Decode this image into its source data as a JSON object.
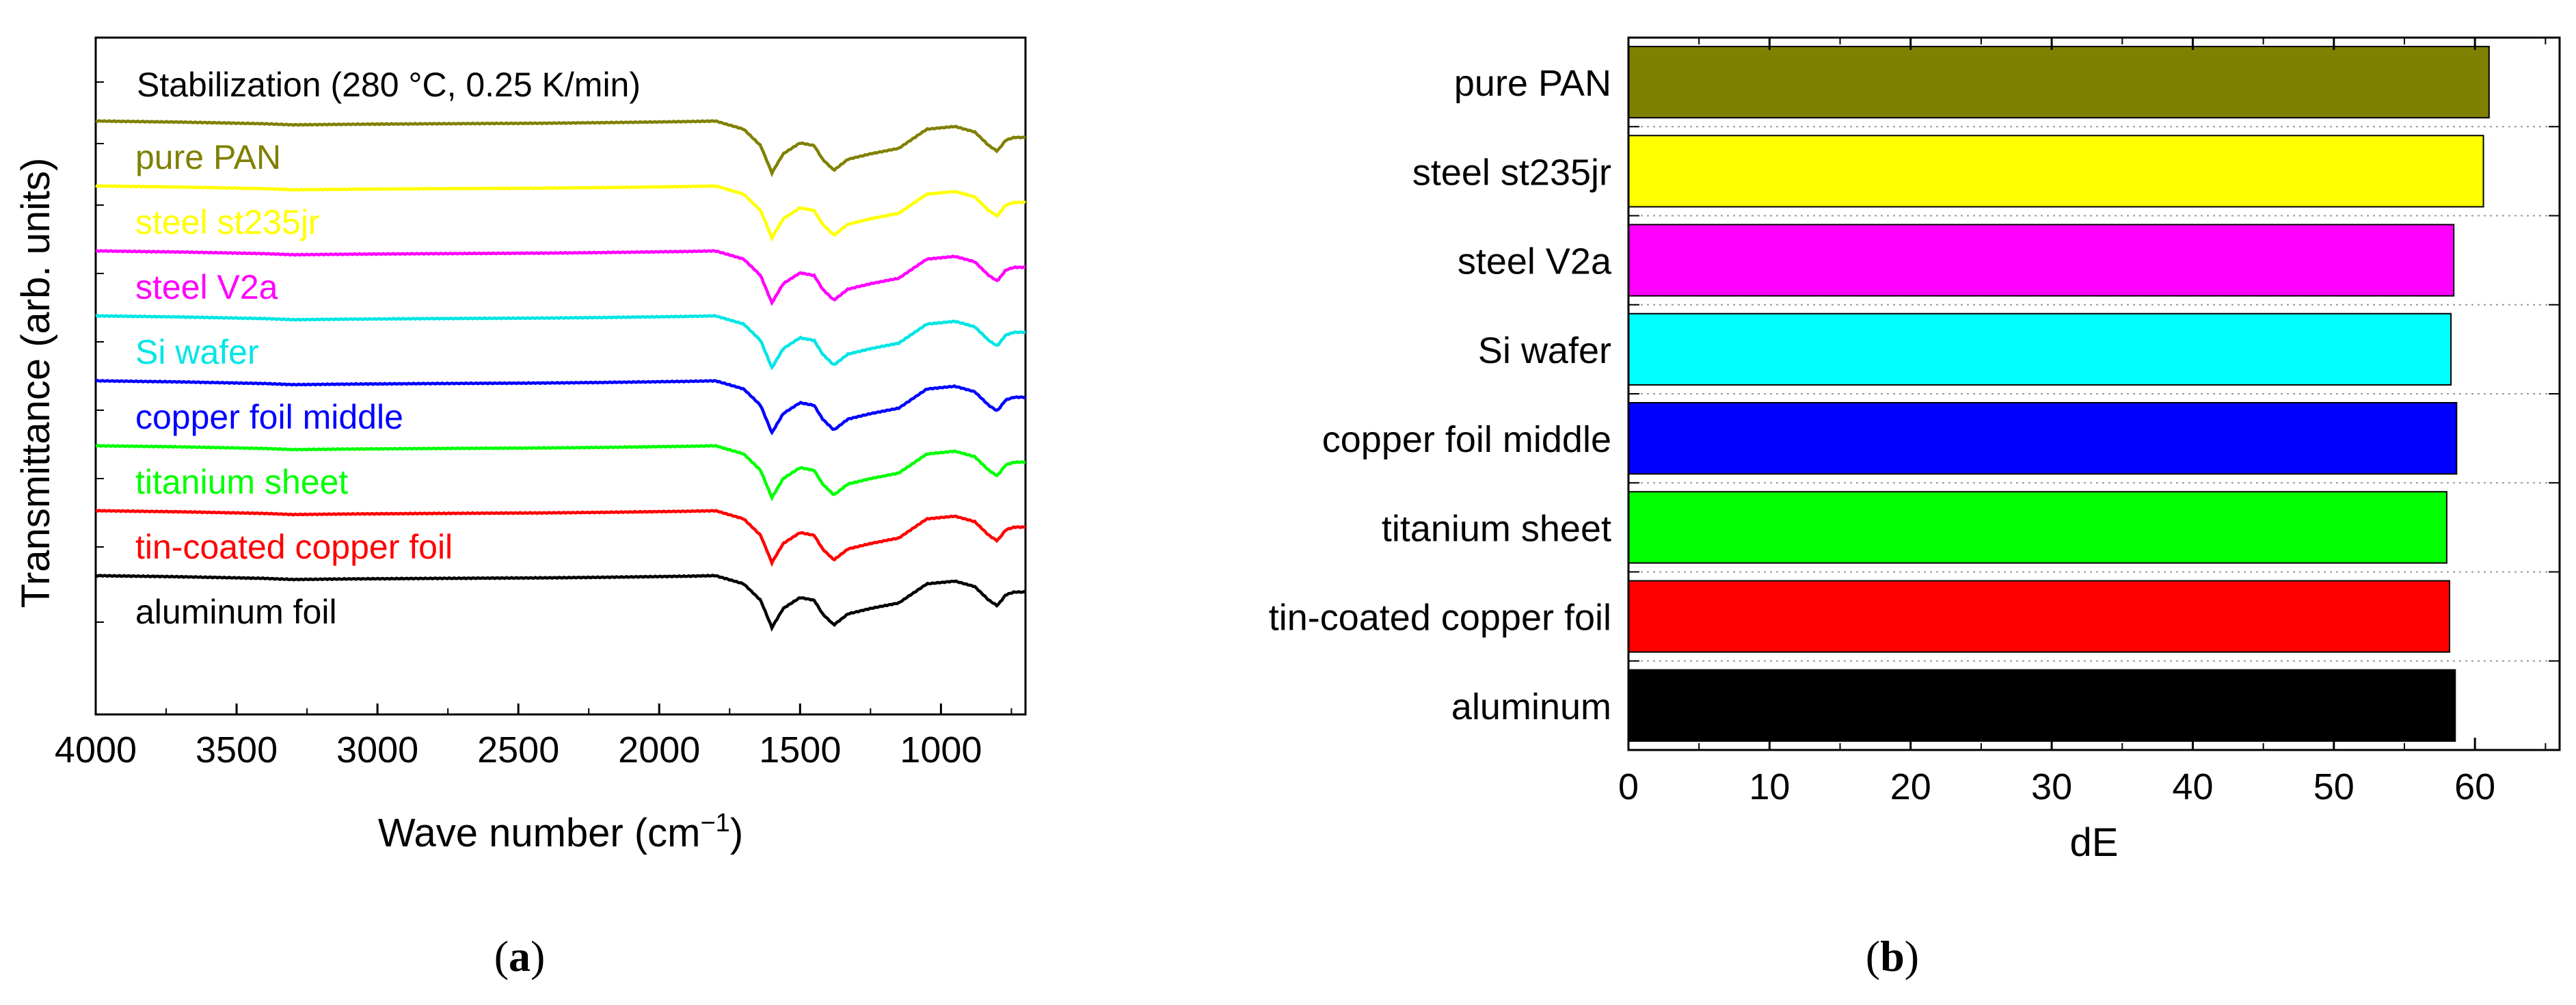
{
  "chart_data": [
    {
      "type": "line",
      "panel_label": "a",
      "title": "Stabilization (280 °C, 0.25 K/min)",
      "xlabel": "Wave number (cm",
      "xlabel_sup": "−1",
      "xlabel_close": ")",
      "ylabel": "Transmittance (arb. units)",
      "xlim": [
        4000,
        700
      ],
      "xticks": [
        4000,
        3500,
        3000,
        2500,
        2000,
        1500,
        1000
      ],
      "y_ticks_labeled": false,
      "series": [
        {
          "name": "pure PAN",
          "color": "#808000",
          "offset": 0
        },
        {
          "name": "steel st235jr",
          "color": "#ffff00",
          "offset": 1
        },
        {
          "name": "steel V2a",
          "color": "#ff00ff",
          "offset": 2
        },
        {
          "name": "Si wafer",
          "color": "#00e5e5",
          "offset": 3
        },
        {
          "name": "copper foil middle",
          "color": "#0000ff",
          "offset": 4
        },
        {
          "name": "titanium sheet",
          "color": "#00ff00",
          "offset": 5
        },
        {
          "name": "tin-coated copper foil",
          "color": "#ff0000",
          "offset": 6
        },
        {
          "name": "aluminum foil",
          "color": "#000000",
          "offset": 7
        }
      ],
      "spectrum_profile": {
        "x": [
          4000,
          3700,
          3400,
          3300,
          3100,
          2800,
          2400,
          2200,
          1900,
          1800,
          1700,
          1640,
          1600,
          1560,
          1500,
          1450,
          1420,
          1380,
          1330,
          1250,
          1150,
          1050,
          950,
          880,
          830,
          800,
          770,
          740,
          700
        ],
        "y": [
          0.0,
          -0.02,
          -0.05,
          -0.07,
          -0.06,
          -0.05,
          -0.04,
          -0.03,
          -0.01,
          0.0,
          -0.15,
          -0.45,
          -0.95,
          -0.6,
          -0.4,
          -0.45,
          -0.7,
          -0.9,
          -0.7,
          -0.6,
          -0.5,
          -0.15,
          -0.1,
          -0.2,
          -0.45,
          -0.55,
          -0.35,
          -0.3,
          -0.3
        ]
      }
    },
    {
      "type": "bar",
      "orientation": "horizontal",
      "panel_label": "b",
      "xlabel": "dE",
      "ylabel": "",
      "xlim": [
        0,
        66
      ],
      "xticks": [
        0,
        10,
        20,
        30,
        40,
        50,
        60
      ],
      "categories": [
        "pure PAN",
        "steel st235jr",
        "steel V2a",
        "Si wafer",
        "copper foil middle",
        "titanium sheet",
        "tin-coated copper foil",
        "aluminum"
      ],
      "values": [
        61.0,
        60.6,
        58.5,
        58.3,
        58.7,
        58.0,
        58.2,
        58.6
      ],
      "colors": [
        "#808000",
        "#ffff00",
        "#ff00ff",
        "#00ffff",
        "#0000ff",
        "#00ff00",
        "#ff0000",
        "#000000"
      ],
      "grid": "horizontal dotted"
    }
  ]
}
